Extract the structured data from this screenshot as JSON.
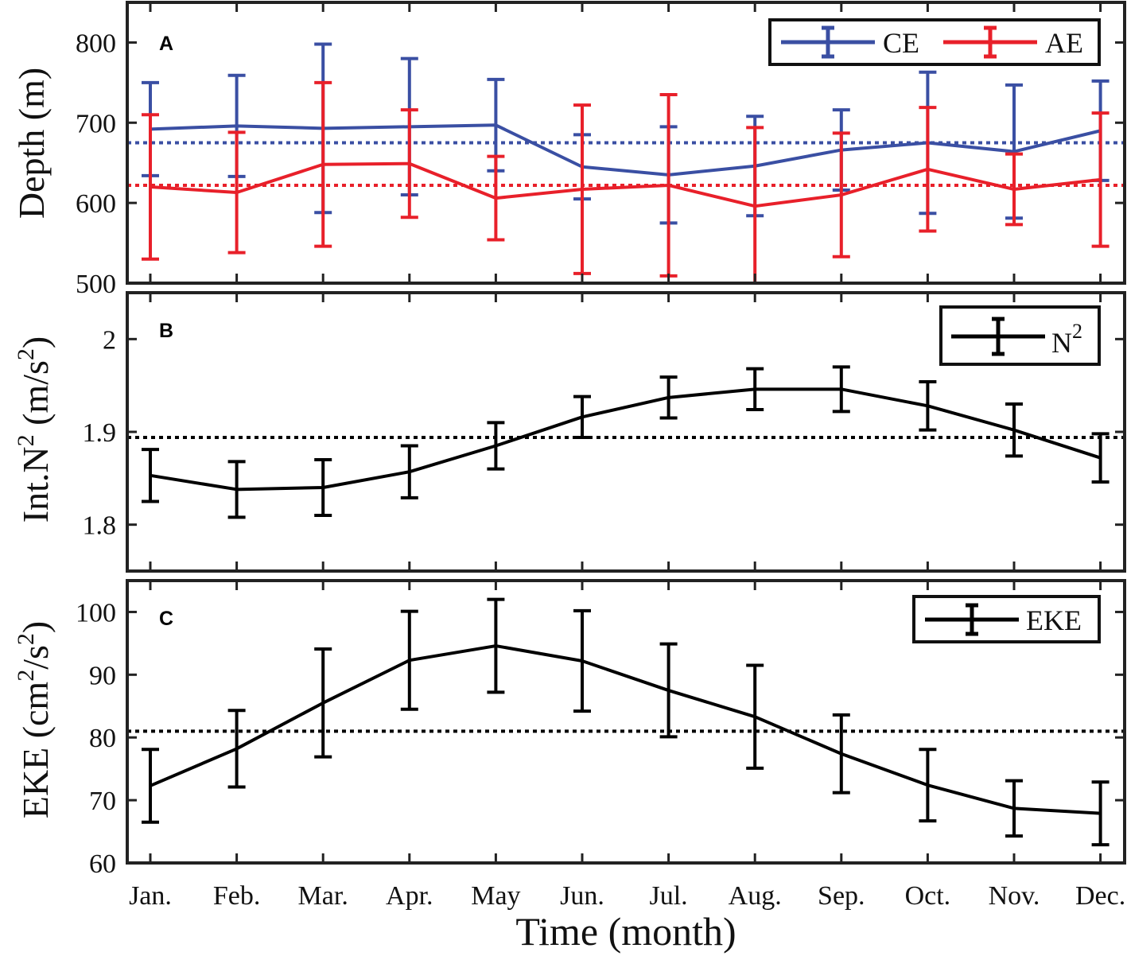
{
  "chart_data": {
    "type": "line",
    "xlabel": "Time (month)",
    "categories": [
      "Jan.",
      "Feb.",
      "Mar.",
      "Apr.",
      "May",
      "Jun.",
      "Jul.",
      "Aug.",
      "Sep.",
      "Oct.",
      "Nov.",
      "Dec."
    ],
    "panels": [
      {
        "id": "A",
        "label": "A",
        "ylabel": "Depth (m)",
        "ylim": [
          500,
          850
        ],
        "yticks": [
          500,
          600,
          700,
          800
        ],
        "legend_position": "top-right",
        "series": [
          {
            "name": "CE",
            "color": "#3a4fa3",
            "values": [
              692,
              696,
              693,
              695,
              697,
              645,
              635,
              646,
              666,
              675,
              664,
              690
            ],
            "errors": [
              58,
              63,
              105,
              85,
              57,
              40,
              60,
              62,
              50,
              88,
              83,
              62
            ],
            "mean": 675
          },
          {
            "name": "AE",
            "color": "#e8202a",
            "values": [
              620,
              613,
              648,
              649,
              606,
              617,
              622,
              596,
              610,
              642,
              617,
              629
            ],
            "errors": [
              90,
              75,
              102,
              67,
              52,
              105,
              113,
              98,
              77,
              77,
              44,
              83
            ],
            "mean": 622
          }
        ]
      },
      {
        "id": "B",
        "label": "B",
        "ylabel_main": "Int.N",
        "ylabel_sup": "2",
        "ylabel_units": "(m/s",
        "ylabel_units_sup": "2",
        "ylabel_close": ")",
        "ylim": [
          1.75,
          2.05
        ],
        "yticks": [
          1.8,
          1.9,
          2
        ],
        "ytick_labels": [
          "1.8",
          "1.9",
          "2"
        ],
        "legend_position": "top-right",
        "series": [
          {
            "name": "N",
            "name_sup": "2",
            "color": "#000000",
            "values": [
              1.853,
              1.838,
              1.84,
              1.857,
              1.885,
              1.916,
              1.937,
              1.946,
              1.946,
              1.928,
              1.902,
              1.872
            ],
            "errors": [
              0.028,
              0.03,
              0.03,
              0.028,
              0.025,
              0.022,
              0.022,
              0.022,
              0.024,
              0.026,
              0.028,
              0.026
            ],
            "mean": 1.894
          }
        ]
      },
      {
        "id": "C",
        "label": "C",
        "ylabel_main": "EKE (cm",
        "ylabel_sup": "2",
        "ylabel_units": "/s",
        "ylabel_units_sup": "2",
        "ylabel_close": ")",
        "ylim": [
          60,
          105
        ],
        "yticks": [
          60,
          70,
          80,
          90,
          100
        ],
        "ytick_labels": [
          "60",
          "70",
          "80",
          "90",
          "100"
        ],
        "legend_position": "top-right",
        "series": [
          {
            "name": "EKE",
            "color": "#000000",
            "values": [
              72.3,
              78.2,
              85.5,
              92.3,
              94.6,
              92.2,
              87.5,
              83.3,
              77.4,
              72.4,
              68.7,
              67.9
            ],
            "errors": [
              5.8,
              6.1,
              8.6,
              7.8,
              7.4,
              8.0,
              7.4,
              8.2,
              6.2,
              5.7,
              4.4,
              5.0
            ],
            "mean": 81
          }
        ]
      }
    ]
  }
}
